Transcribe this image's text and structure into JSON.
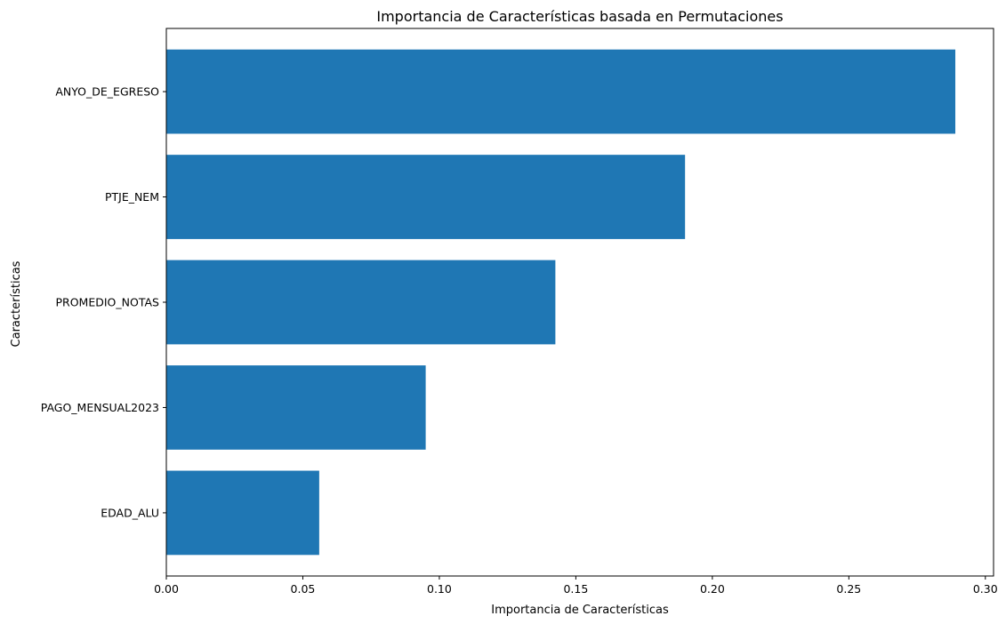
{
  "chart_data": {
    "type": "bar",
    "orientation": "horizontal",
    "title": "Importancia de Características basada en Permutaciones",
    "xlabel": "Importancia de Características",
    "ylabel": "Características",
    "categories": [
      "ANYO_DE_EGRESO",
      "PTJE_NEM",
      "PROMEDIO_NOTAS",
      "PAGO_MENSUAL2023",
      "EDAD_ALU"
    ],
    "values": [
      0.289,
      0.19,
      0.1425,
      0.095,
      0.056
    ],
    "xlim": [
      0,
      0.303
    ],
    "xticks": [
      0.0,
      0.05,
      0.1,
      0.15,
      0.2,
      0.25,
      0.3
    ],
    "xtick_labels": [
      "0.00",
      "0.05",
      "0.10",
      "0.15",
      "0.20",
      "0.25",
      "0.30"
    ],
    "bar_color": "#1f77b4",
    "grid": false
  }
}
